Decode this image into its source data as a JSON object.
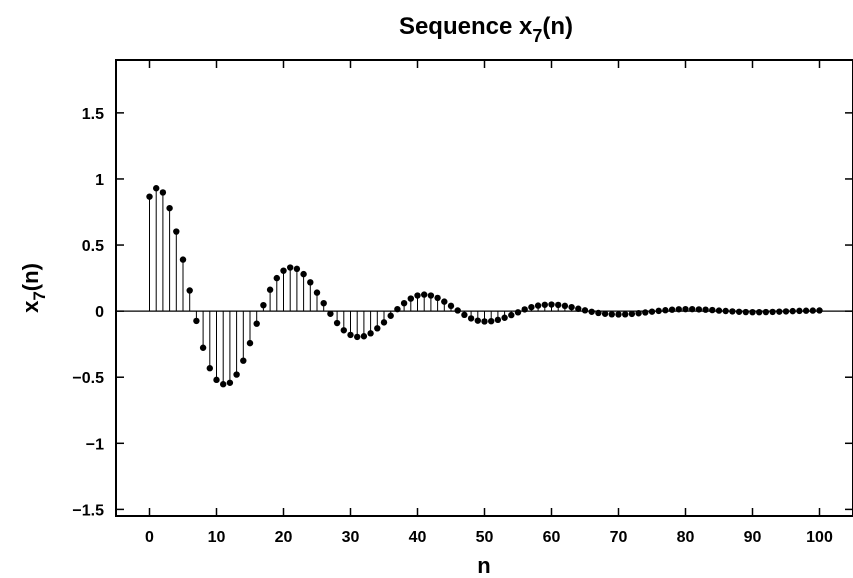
{
  "chart_data": {
    "type": "stem",
    "title": {
      "base": "Sequence x",
      "sub": "7",
      "tail": "(n)"
    },
    "xlabel": "n",
    "ylabel": {
      "base": "x",
      "sub": "7",
      "tail": "(n)"
    },
    "xlim": [
      -5,
      105
    ],
    "ylim": [
      -1.55,
      1.9
    ],
    "xticks": [
      0,
      10,
      20,
      30,
      40,
      50,
      60,
      70,
      80,
      90,
      100
    ],
    "yticks": [
      -1.5,
      -1,
      -0.5,
      0,
      0.5,
      1,
      1.5
    ],
    "ytick_labels": [
      "−1.5",
      "−1",
      "−0.5",
      "0",
      "0.5",
      "1",
      "1.5"
    ],
    "grid": false,
    "marker_color": "#000000",
    "series": [
      {
        "x": [
          0,
          1,
          2,
          3,
          4,
          5,
          6,
          7,
          8,
          9,
          10,
          11,
          12,
          13,
          14,
          15,
          16,
          17,
          18,
          19,
          20,
          21,
          22,
          23,
          24,
          25,
          26,
          27,
          28,
          29,
          30,
          31,
          32,
          33,
          34,
          35,
          36,
          37,
          38,
          39,
          40,
          41,
          42,
          43,
          44,
          45,
          46,
          47,
          48,
          49,
          50,
          51,
          52,
          53,
          54,
          55,
          56,
          57,
          58,
          59,
          60,
          61,
          62,
          63,
          64,
          65,
          66,
          67,
          68,
          69,
          70,
          71,
          72,
          73,
          74,
          75,
          76,
          77,
          78,
          79,
          80,
          81,
          82,
          83,
          84,
          85,
          86,
          87,
          88,
          89,
          90,
          91,
          92,
          93,
          94,
          95,
          96,
          97,
          98,
          99,
          100
        ],
        "y": [
          0.866,
          0.93,
          0.898,
          0.779,
          0.602,
          0.39,
          0.156,
          -0.074,
          -0.277,
          -0.432,
          -0.52,
          -0.553,
          -0.542,
          -0.48,
          -0.375,
          -0.242,
          -0.095,
          0.045,
          0.162,
          0.25,
          0.306,
          0.33,
          0.32,
          0.28,
          0.218,
          0.14,
          0.06,
          -0.02,
          -0.09,
          -0.145,
          -0.18,
          -0.195,
          -0.19,
          -0.168,
          -0.13,
          -0.085,
          -0.035,
          0.015,
          0.06,
          0.095,
          0.118,
          0.125,
          0.118,
          0.1,
          0.072,
          0.04,
          0.005,
          -0.028,
          -0.055,
          -0.072,
          -0.078,
          -0.076,
          -0.066,
          -0.05,
          -0.03,
          -0.009,
          0.013,
          0.03,
          0.042,
          0.048,
          0.05,
          0.047,
          0.04,
          0.03,
          0.018,
          0.006,
          -0.005,
          -0.014,
          -0.02,
          -0.024,
          -0.025,
          -0.024,
          -0.021,
          -0.016,
          -0.01,
          -0.004,
          0.002,
          0.007,
          0.011,
          0.014,
          0.015,
          0.015,
          0.013,
          0.011,
          0.008,
          0.004,
          0.001,
          -0.002,
          -0.005,
          -0.007,
          -0.008,
          -0.008,
          -0.007,
          -0.006,
          -0.004,
          -0.002,
          0.0,
          0.002,
          0.003,
          0.004,
          0.005
        ]
      }
    ]
  }
}
